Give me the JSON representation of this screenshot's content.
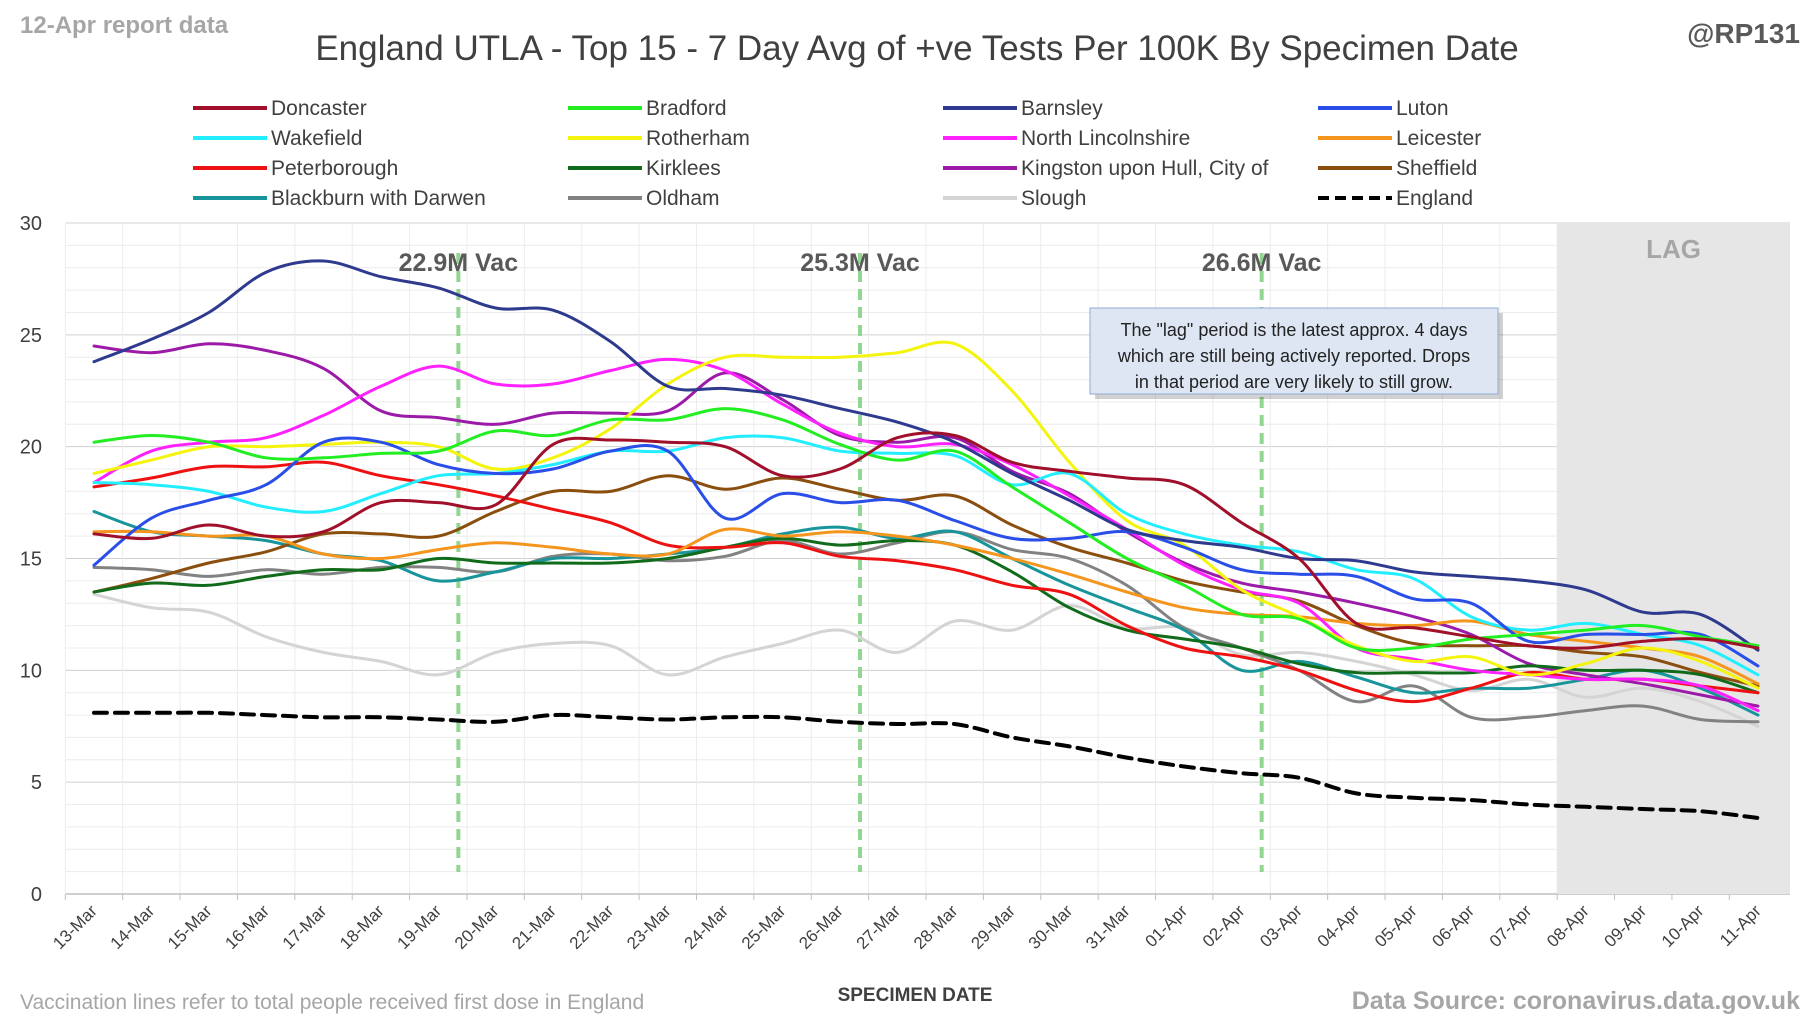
{
  "header": {
    "report_note": "12-Apr report data",
    "handle": "@RP131"
  },
  "footer": {
    "vaccination_note": "Vaccination lines refer to total people received first dose in England",
    "source": "Data Source: coronavirus.data.gov.uk"
  },
  "annotation": {
    "lines": [
      "The \"lag\" period is the latest approx. 4 days",
      "which are still being actively reported.  Drops",
      "in that period are very likely to still grow."
    ]
  },
  "chart_data": {
    "type": "line",
    "title": "England UTLA - Top 15 - 7 Day Avg of +ve Tests Per 100K By Specimen Date",
    "xlabel": "SPECIMEN DATE",
    "ylabel": "",
    "ylim": [
      0,
      30
    ],
    "yticks": [
      0,
      5,
      10,
      15,
      20,
      25,
      30
    ],
    "grid": true,
    "legend_position": "top",
    "lag_region": {
      "label": "LAG",
      "from": "08-Apr",
      "to": "11-Apr",
      "color": "#e6e6e6"
    },
    "vaccination_markers": [
      {
        "date": "19-Mar",
        "label": "22.9M Vac"
      },
      {
        "date": "26-Mar",
        "label": "25.3M Vac"
      },
      {
        "date": "02-Apr",
        "label": "26.6M Vac"
      }
    ],
    "categories": [
      "13-Mar",
      "14-Mar",
      "15-Mar",
      "16-Mar",
      "17-Mar",
      "18-Mar",
      "19-Mar",
      "20-Mar",
      "21-Mar",
      "22-Mar",
      "23-Mar",
      "24-Mar",
      "25-Mar",
      "26-Mar",
      "27-Mar",
      "28-Mar",
      "29-Mar",
      "30-Mar",
      "31-Mar",
      "01-Apr",
      "02-Apr",
      "03-Apr",
      "04-Apr",
      "05-Apr",
      "06-Apr",
      "07-Apr",
      "08-Apr",
      "09-Apr",
      "10-Apr",
      "11-Apr"
    ],
    "series": [
      {
        "name": "Doncaster",
        "color": "#a0102a",
        "values": [
          16.1,
          15.9,
          16.5,
          16.0,
          16.2,
          17.5,
          17.5,
          17.4,
          20.1,
          20.3,
          20.2,
          20.0,
          18.7,
          19.0,
          20.4,
          20.5,
          19.3,
          18.9,
          18.6,
          18.3,
          16.6,
          15.0,
          12.1,
          11.9,
          11.5,
          11.1,
          11.0,
          11.3,
          11.4,
          11.0
        ]
      },
      {
        "name": "Bradford",
        "color": "#22ee22",
        "values": [
          20.2,
          20.5,
          20.2,
          19.5,
          19.5,
          19.7,
          19.8,
          20.7,
          20.5,
          21.2,
          21.2,
          21.7,
          21.2,
          20.1,
          19.4,
          19.8,
          18.2,
          16.6,
          15.0,
          13.8,
          12.5,
          12.3,
          11.0,
          11.0,
          11.4,
          11.6,
          11.8,
          12.0,
          11.5,
          11.1
        ]
      },
      {
        "name": "Barnsley",
        "color": "#2e3a8e",
        "values": [
          23.8,
          24.8,
          26.0,
          27.8,
          28.3,
          27.6,
          27.1,
          26.2,
          26.1,
          24.7,
          22.7,
          22.6,
          22.3,
          21.7,
          21.1,
          20.2,
          18.8,
          17.6,
          16.3,
          15.8,
          15.5,
          15.0,
          14.9,
          14.4,
          14.2,
          14.0,
          13.6,
          12.6,
          12.5,
          10.9
        ]
      },
      {
        "name": "Luton",
        "color": "#2a4ee8",
        "values": [
          14.7,
          16.8,
          17.6,
          18.3,
          20.2,
          20.2,
          19.2,
          18.8,
          19.0,
          19.8,
          19.8,
          16.8,
          17.9,
          17.5,
          17.6,
          16.7,
          15.9,
          15.9,
          16.2,
          15.5,
          14.5,
          14.3,
          14.2,
          13.2,
          13.0,
          11.3,
          11.6,
          11.6,
          11.6,
          10.2
        ]
      },
      {
        "name": "Wakefield",
        "color": "#22eeff",
        "values": [
          18.4,
          18.3,
          18.0,
          17.3,
          17.1,
          17.9,
          18.7,
          18.8,
          19.2,
          19.8,
          19.8,
          20.4,
          20.4,
          19.8,
          19.7,
          19.6,
          18.3,
          18.8,
          17.0,
          16.1,
          15.6,
          15.3,
          14.5,
          14.1,
          12.4,
          11.8,
          12.1,
          11.6,
          11.1,
          9.8
        ]
      },
      {
        "name": "Rotherham",
        "color": "#f4f40c",
        "values": [
          18.8,
          19.4,
          20.0,
          20.0,
          20.1,
          20.2,
          20.0,
          19.0,
          19.5,
          20.8,
          22.8,
          24.0,
          24.0,
          24.0,
          24.2,
          24.6,
          22.5,
          19.3,
          16.7,
          15.6,
          13.6,
          12.4,
          11.1,
          10.4,
          10.6,
          9.8,
          10.3,
          11.0,
          10.4,
          9.2
        ]
      },
      {
        "name": "North Lincolnshire",
        "color": "#ff22ff",
        "values": [
          18.4,
          19.8,
          20.2,
          20.4,
          21.4,
          22.7,
          23.6,
          22.8,
          22.8,
          23.4,
          23.9,
          23.4,
          21.9,
          20.6,
          20.0,
          20.1,
          19.2,
          17.8,
          16.3,
          14.7,
          13.6,
          13.0,
          11.0,
          10.5,
          10.0,
          9.8,
          9.6,
          9.6,
          9.3,
          8.2
        ]
      },
      {
        "name": "Leicester",
        "color": "#f4951e",
        "values": [
          16.2,
          16.2,
          16.0,
          16.0,
          15.2,
          15.0,
          15.4,
          15.7,
          15.5,
          15.2,
          15.2,
          16.3,
          16.0,
          16.2,
          16.0,
          15.6,
          15.0,
          14.3,
          13.5,
          12.8,
          12.5,
          12.4,
          12.1,
          12.0,
          12.2,
          11.6,
          11.3,
          11.0,
          10.6,
          9.4
        ]
      },
      {
        "name": "Peterborough",
        "color": "#ee1111",
        "values": [
          18.2,
          18.6,
          19.1,
          19.1,
          19.3,
          18.7,
          18.3,
          17.8,
          17.2,
          16.6,
          15.6,
          15.5,
          15.7,
          15.1,
          14.9,
          14.5,
          13.8,
          13.4,
          12.0,
          11.0,
          10.6,
          10.0,
          9.1,
          8.6,
          9.2,
          9.9,
          9.6,
          9.6,
          9.3,
          9.0
        ]
      },
      {
        "name": "Kirklees",
        "color": "#106b1a",
        "values": [
          13.5,
          13.9,
          13.8,
          14.2,
          14.5,
          14.5,
          15.0,
          14.8,
          14.8,
          14.8,
          15.0,
          15.5,
          15.9,
          15.6,
          15.8,
          15.6,
          14.4,
          12.8,
          11.8,
          11.4,
          11.0,
          10.3,
          9.9,
          9.9,
          9.9,
          10.2,
          10.0,
          10.0,
          9.8,
          9.0
        ]
      },
      {
        "name": "Kingston upon Hull, City of",
        "color": "#9b1ba8",
        "values": [
          24.5,
          24.2,
          24.6,
          24.3,
          23.5,
          21.6,
          21.3,
          21.0,
          21.5,
          21.5,
          21.6,
          23.3,
          22.1,
          20.5,
          20.2,
          20.4,
          18.9,
          17.9,
          16.2,
          14.8,
          13.9,
          13.5,
          13.0,
          12.4,
          11.6,
          10.3,
          9.8,
          9.4,
          8.9,
          8.4
        ]
      },
      {
        "name": "Sheffield",
        "color": "#8a4e0e",
        "values": [
          13.5,
          14.1,
          14.8,
          15.3,
          16.1,
          16.1,
          16.0,
          17.1,
          18.0,
          18.0,
          18.7,
          18.1,
          18.6,
          18.1,
          17.6,
          17.8,
          16.5,
          15.5,
          14.8,
          14.0,
          13.5,
          13.1,
          12.0,
          11.2,
          11.1,
          11.1,
          10.8,
          10.6,
          9.9,
          9.3
        ]
      },
      {
        "name": "Blackburn with Darwen",
        "color": "#17959a",
        "values": [
          17.1,
          16.2,
          16.0,
          15.8,
          15.2,
          14.9,
          14.0,
          14.4,
          15.0,
          15.0,
          15.2,
          15.5,
          16.1,
          16.4,
          15.9,
          16.2,
          15.0,
          13.8,
          12.8,
          11.8,
          10.0,
          10.4,
          9.7,
          9.0,
          9.2,
          9.2,
          9.6,
          10.0,
          9.2,
          8.0
        ]
      },
      {
        "name": "Oldham",
        "color": "#828282",
        "values": [
          14.6,
          14.5,
          14.2,
          14.5,
          14.3,
          14.6,
          14.6,
          14.4,
          15.1,
          15.2,
          14.9,
          15.1,
          15.8,
          15.2,
          15.7,
          16.2,
          15.4,
          15.0,
          13.8,
          11.9,
          11.0,
          10.0,
          8.6,
          9.3,
          7.9,
          7.9,
          8.2,
          8.4,
          7.8,
          7.7
        ]
      },
      {
        "name": "Slough",
        "color": "#d4d4d4",
        "values": [
          13.4,
          12.8,
          12.6,
          11.5,
          10.8,
          10.4,
          9.8,
          10.8,
          11.2,
          11.1,
          9.8,
          10.6,
          11.2,
          11.8,
          10.8,
          12.2,
          11.8,
          12.9,
          11.9,
          11.9,
          10.7,
          10.8,
          10.4,
          9.8,
          9.1,
          9.6,
          8.8,
          9.2,
          8.6,
          7.5
        ]
      },
      {
        "name": "England",
        "color": "#000000",
        "dashed": true,
        "values": [
          8.1,
          8.1,
          8.1,
          8.0,
          7.9,
          7.9,
          7.8,
          7.7,
          8.0,
          7.9,
          7.8,
          7.9,
          7.9,
          7.7,
          7.6,
          7.6,
          7.0,
          6.6,
          6.1,
          5.7,
          5.4,
          5.2,
          4.5,
          4.3,
          4.2,
          4.0,
          3.9,
          3.8,
          3.7,
          3.4
        ]
      }
    ]
  }
}
